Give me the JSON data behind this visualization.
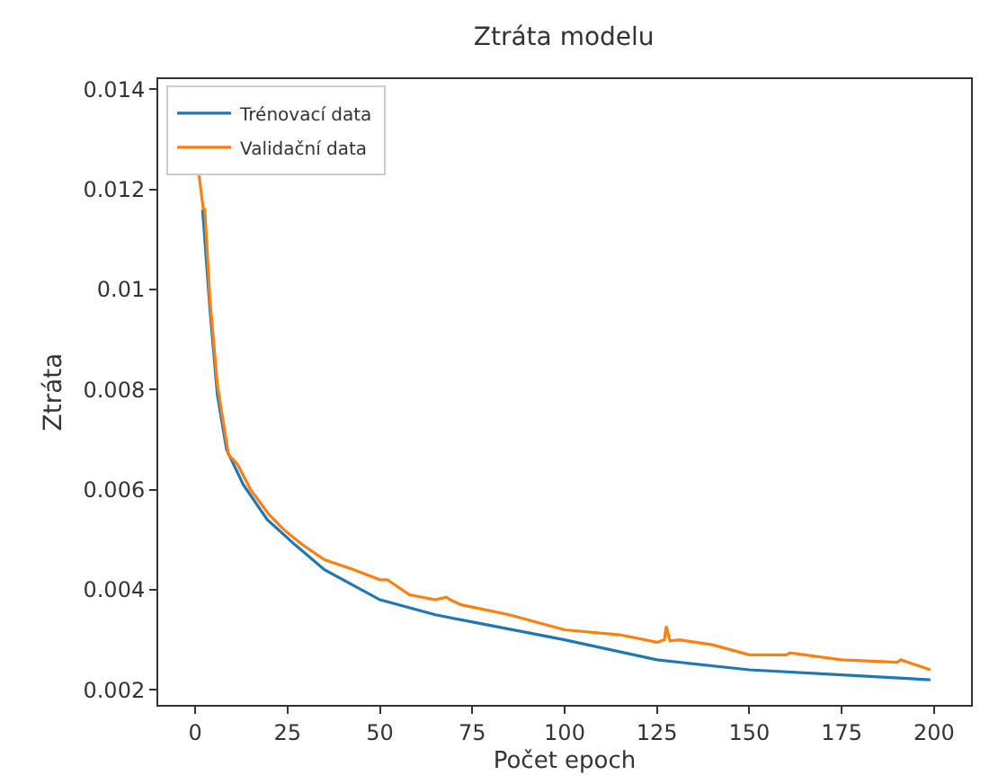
{
  "chart_data": {
    "type": "line",
    "title": "Ztráta modelu",
    "xlabel": "Počet epoch",
    "ylabel": "Ztráta",
    "xlim": [
      -10,
      210
    ],
    "xticks": [
      0,
      25,
      50,
      75,
      100,
      125,
      150,
      175,
      200
    ],
    "ylim": [
      0.0017,
      0.0142
    ],
    "yticks": [
      0.002,
      0.004,
      0.006,
      0.008,
      0.01,
      0.012,
      0.014
    ],
    "grid": false,
    "legend": "top left",
    "marker": "none",
    "line_style": "solid",
    "series": [
      {
        "name": "Trénovací data",
        "color": "#1f77b4",
        "x": [
          2,
          4,
          6,
          8.5,
          13,
          19.5,
          27,
          35,
          50,
          65,
          72,
          100,
          125,
          150,
          175,
          199
        ],
        "values": [
          0.0116,
          0.0096,
          0.0079,
          0.0068,
          0.0061,
          0.0054,
          0.0049,
          0.0044,
          0.0038,
          0.0035,
          0.0034,
          0.003,
          0.0026,
          0.0024,
          0.0023,
          0.0022
        ]
      },
      {
        "name": "Validační data",
        "color": "#ff7f0e",
        "x": [
          1,
          2.2,
          2.6,
          4,
          6,
          9,
          11.5,
          15,
          18,
          20,
          24,
          29,
          35,
          43,
          50,
          52,
          58,
          65,
          68,
          69,
          72,
          85,
          100,
          115,
          125,
          127,
          127.5,
          128.5,
          131,
          140,
          150,
          160,
          161,
          175,
          190,
          191,
          199
        ],
        "values": [
          0.0123,
          0.0116,
          0.0116,
          0.0098,
          0.0081,
          0.0067,
          0.0065,
          0.006,
          0.0057,
          0.0055,
          0.0052,
          0.0049,
          0.0046,
          0.0044,
          0.0042,
          0.0042,
          0.0039,
          0.0038,
          0.00385,
          0.0038,
          0.0037,
          0.0035,
          0.0032,
          0.0031,
          0.00295,
          0.003,
          0.00327,
          0.00298,
          0.003,
          0.0029,
          0.0027,
          0.0027,
          0.00274,
          0.0026,
          0.00255,
          0.0026,
          0.0024
        ]
      }
    ]
  }
}
